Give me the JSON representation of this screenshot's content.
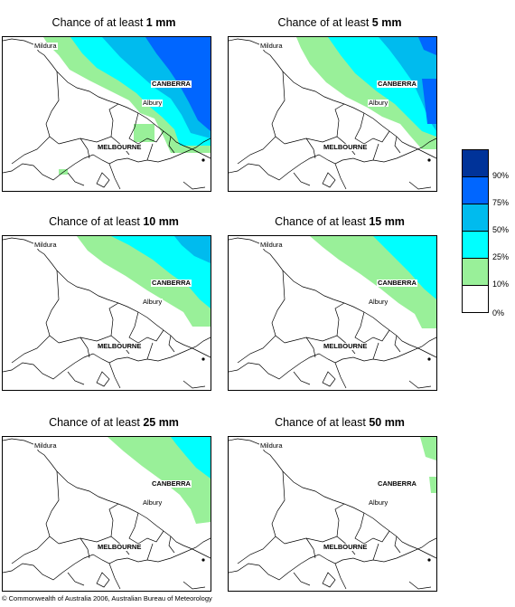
{
  "panels": [
    {
      "prefix": "Chance of at least ",
      "amount": "1 mm",
      "fill": [
        {
          "poly": "45,0 230,0 230,128 186,128 178,110 168,90 152,84 140,70 120,60 96,48 74,36 62,20 50,8",
          "color": "#99f099"
        },
        {
          "poly": "75,0 230,0 230,120 196,120 190,102 176,88 164,78 148,62 128,48 104,34 88,18",
          "color": "#00ffff"
        },
        {
          "poly": "110,0 230,0 230,112 208,106 198,86 186,68 168,56 150,40 130,22",
          "color": "#00bbee"
        },
        {
          "poly": "158,0 230,0 230,104 216,92 206,72 196,54 184,36 170,18",
          "color": "#0066ff"
        },
        {
          "poly": "145,96 168,96 168,116 145,116",
          "color": "#99f099"
        },
        {
          "poly": "62,146 72,146 72,152 62,152",
          "color": "#99f099"
        }
      ]
    },
    {
      "prefix": "Chance of at least ",
      "amount": "5 mm",
      "fill": [
        {
          "poly": "75,0 230,0 230,124 214,124 200,108 190,96 170,88 154,78 130,66 108,50 90,30 80,12",
          "color": "#99f099"
        },
        {
          "poly": "110,0 230,0 230,110 214,104 202,92 184,74 164,60 140,40 124,20",
          "color": "#00ffff"
        },
        {
          "poly": "166,0 230,0 230,104 222,92 214,72 204,50 190,30 178,14",
          "color": "#00bbee"
        },
        {
          "poly": "210,0 230,0 230,20 216,14",
          "color": "#0066ff"
        },
        {
          "poly": "214,46 230,46 230,96 220,96",
          "color": "#0066ff"
        }
      ]
    },
    {
      "prefix": "Chance of at least ",
      "amount": "10 mm",
      "fill": [
        {
          "poly": "82,0 230,0 230,100 210,100 200,84 180,72 160,60 136,44 112,30 94,16",
          "color": "#99f099"
        },
        {
          "poly": "120,0 230,0 230,80 218,70 206,56 186,42 166,26 140,10",
          "color": "#00ffff"
        },
        {
          "poly": "190,0 230,0 230,30 212,22 198,10",
          "color": "#00bbee"
        }
      ]
    },
    {
      "prefix": "Chance of at least ",
      "amount": "15 mm",
      "fill": [
        {
          "poly": "90,0 230,0 230,102 214,102 206,86 188,74 168,58 146,42 122,26 104,12",
          "color": "#99f099"
        },
        {
          "poly": "160,0 230,0 230,70 216,58 200,40 182,22 168,8",
          "color": "#00ffff"
        }
      ]
    },
    {
      "prefix": "Chance of at least ",
      "amount": "25 mm",
      "fill": [
        {
          "poly": "116,0 230,0 230,94 214,96 208,80 196,64 176,48 154,32 134,16",
          "color": "#99f099"
        },
        {
          "poly": "186,0 230,0 230,46 214,34 202,20 192,8",
          "color": "#00ffff"
        }
      ]
    },
    {
      "prefix": "Chance of at least ",
      "amount": "50 mm",
      "fill": [
        {
          "poly": "212,0 230,0 230,26 218,22",
          "color": "#99f099"
        },
        {
          "poly": "222,44 230,44 230,62 224,62",
          "color": "#99f099"
        }
      ]
    }
  ],
  "map_labels": {
    "mildura": "Mildura",
    "canberra": "CANBERRA",
    "albury": "Albury",
    "melbourne": "MELBOURNE"
  },
  "legend": {
    "colors": [
      "#ffffff",
      "#99f099",
      "#00ffff",
      "#00bbee",
      "#0066ff",
      "#003399"
    ],
    "ticks": [
      "0%",
      "10%",
      "25%",
      "50%",
      "75%",
      "90%"
    ]
  },
  "copyright": "© Commonwealth of Australia 2006, Australian Bureau of Meteorology"
}
